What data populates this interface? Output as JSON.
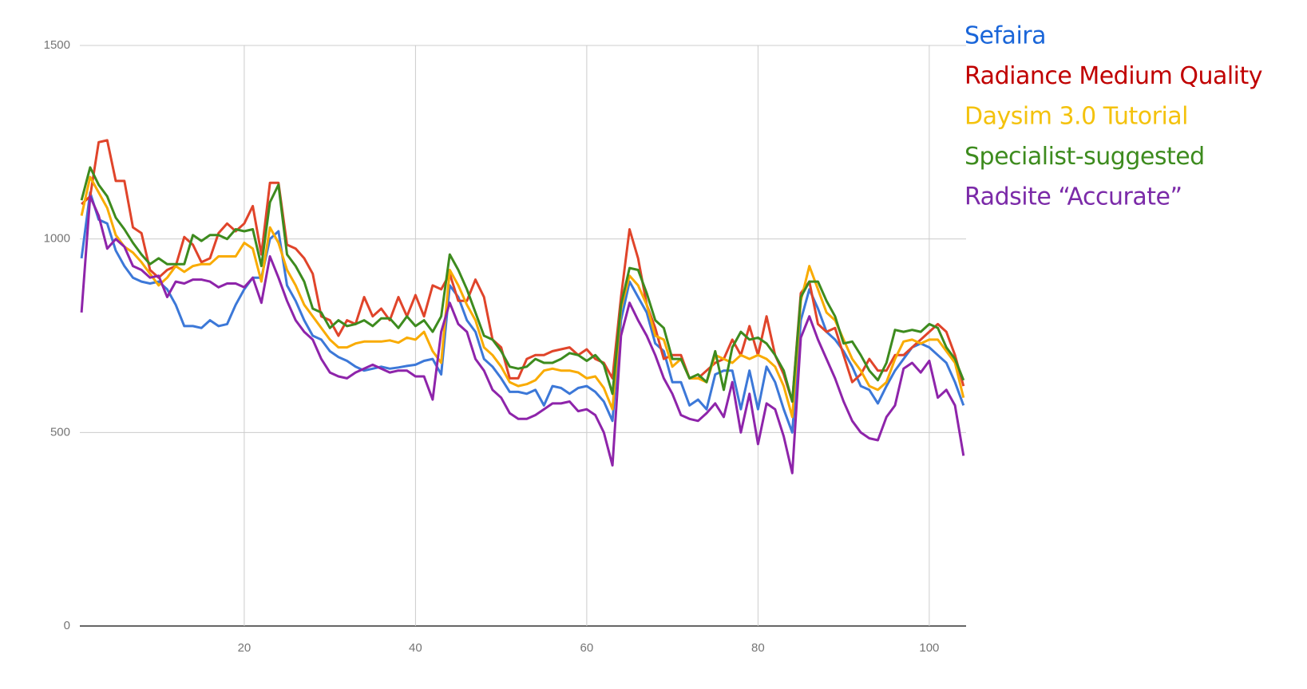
{
  "chart_data": {
    "type": "line",
    "x": [
      1,
      2,
      3,
      4,
      5,
      6,
      7,
      8,
      9,
      10,
      11,
      12,
      13,
      14,
      15,
      16,
      17,
      18,
      19,
      20,
      21,
      22,
      23,
      24,
      25,
      26,
      27,
      28,
      29,
      30,
      31,
      32,
      33,
      34,
      35,
      36,
      37,
      38,
      39,
      40,
      41,
      42,
      43,
      44,
      45,
      46,
      47,
      48,
      49,
      50,
      51,
      52,
      53,
      54,
      55,
      56,
      57,
      58,
      59,
      60,
      61,
      62,
      63,
      64,
      65,
      66,
      67,
      68,
      69,
      70,
      71,
      72,
      73,
      74,
      75,
      76,
      77,
      78,
      79,
      80,
      81,
      82,
      83,
      84,
      85,
      86,
      87,
      88,
      89,
      90,
      91,
      92,
      93,
      94,
      95,
      96,
      97,
      98,
      99,
      100,
      101,
      102,
      103,
      104
    ],
    "xlim": [
      0.8,
      104.3
    ],
    "xticks": [
      20,
      40,
      60,
      80,
      100
    ],
    "ylim": [
      0,
      1500
    ],
    "yticks": [
      0,
      500,
      1000,
      1500
    ],
    "grid": true,
    "legend": "right",
    "series": [
      {
        "name": "Sefaira",
        "color": "#3c78d8",
        "legend_color": "#1a66d9",
        "values": [
          950,
          1120,
          1050,
          1040,
          970,
          930,
          900,
          890,
          885,
          890,
          870,
          830,
          775,
          775,
          770,
          790,
          775,
          780,
          830,
          870,
          900,
          900,
          1000,
          1020,
          880,
          840,
          790,
          750,
          740,
          710,
          695,
          685,
          670,
          660,
          665,
          670,
          665,
          668,
          672,
          675,
          685,
          690,
          650,
          880,
          850,
          790,
          760,
          690,
          670,
          640,
          605,
          605,
          600,
          610,
          570,
          620,
          615,
          600,
          615,
          620,
          605,
          580,
          530,
          790,
          890,
          850,
          810,
          730,
          710,
          630,
          630,
          570,
          585,
          560,
          650,
          660,
          660,
          560,
          660,
          560,
          670,
          630,
          560,
          500,
          790,
          870,
          820,
          760,
          740,
          710,
          670,
          620,
          610,
          575,
          620,
          660,
          690,
          720,
          730,
          720,
          700,
          680,
          630,
          570
        ]
      },
      {
        "name": "Radiance Medium Quality",
        "color": "#e0442a",
        "legend_color": "#c00000",
        "values": [
          1090,
          1110,
          1250,
          1255,
          1150,
          1150,
          1030,
          1015,
          920,
          900,
          920,
          930,
          1005,
          985,
          940,
          950,
          1015,
          1040,
          1020,
          1040,
          1085,
          960,
          1145,
          1145,
          985,
          975,
          950,
          910,
          800,
          790,
          750,
          790,
          780,
          850,
          800,
          820,
          790,
          850,
          800,
          855,
          800,
          880,
          870,
          910,
          840,
          840,
          895,
          850,
          740,
          720,
          640,
          640,
          690,
          700,
          700,
          710,
          715,
          720,
          700,
          715,
          690,
          680,
          640,
          850,
          1025,
          950,
          830,
          770,
          690,
          700,
          700,
          640,
          640,
          660,
          680,
          690,
          740,
          700,
          775,
          700,
          800,
          700,
          650,
          580,
          860,
          890,
          780,
          760,
          770,
          700,
          630,
          650,
          690,
          660,
          660,
          700,
          700,
          720,
          740,
          760,
          780,
          760,
          700,
          620
        ]
      },
      {
        "name": "Daysim 3.0 Tutorial",
        "color": "#f9ab00",
        "legend_color": "#f4c20d",
        "values": [
          1060,
          1160,
          1120,
          1080,
          1010,
          980,
          965,
          940,
          910,
          880,
          900,
          930,
          915,
          930,
          935,
          935,
          955,
          955,
          955,
          990,
          975,
          890,
          1030,
          990,
          920,
          880,
          830,
          800,
          770,
          740,
          720,
          720,
          730,
          735,
          735,
          735,
          738,
          732,
          745,
          740,
          760,
          710,
          680,
          920,
          880,
          830,
          790,
          720,
          700,
          670,
          630,
          620,
          625,
          635,
          660,
          665,
          660,
          660,
          655,
          640,
          645,
          615,
          560,
          820,
          905,
          880,
          830,
          750,
          740,
          670,
          690,
          640,
          640,
          630,
          700,
          690,
          680,
          700,
          690,
          700,
          690,
          670,
          620,
          540,
          840,
          930,
          870,
          810,
          790,
          740,
          690,
          660,
          620,
          610,
          630,
          690,
          735,
          740,
          730,
          740,
          740,
          710,
          680,
          590
        ]
      },
      {
        "name": "Specialist-suggested",
        "color": "#3d8b1e",
        "legend_color": "#3d8b1e",
        "values": [
          1100,
          1185,
          1140,
          1110,
          1055,
          1025,
          990,
          960,
          935,
          950,
          935,
          935,
          935,
          1010,
          995,
          1010,
          1010,
          1000,
          1025,
          1020,
          1025,
          930,
          1095,
          1140,
          960,
          930,
          890,
          820,
          810,
          770,
          790,
          775,
          780,
          790,
          775,
          795,
          795,
          770,
          800,
          775,
          790,
          760,
          800,
          960,
          920,
          870,
          810,
          750,
          740,
          710,
          670,
          665,
          670,
          690,
          680,
          680,
          690,
          705,
          700,
          685,
          700,
          675,
          600,
          830,
          925,
          920,
          860,
          790,
          770,
          690,
          690,
          640,
          650,
          630,
          710,
          610,
          720,
          760,
          740,
          745,
          730,
          700,
          660,
          580,
          850,
          890,
          890,
          840,
          800,
          730,
          735,
          700,
          660,
          635,
          680,
          765,
          760,
          765,
          760,
          780,
          770,
          720,
          690,
          635
        ]
      },
      {
        "name": "Radsite “Accurate”",
        "color": "#8e24aa",
        "legend_color": "#7b2aa8",
        "values": [
          810,
          1110,
          1060,
          975,
          1000,
          980,
          930,
          920,
          900,
          905,
          850,
          890,
          885,
          895,
          895,
          890,
          875,
          885,
          885,
          875,
          900,
          835,
          955,
          900,
          840,
          790,
          760,
          740,
          690,
          655,
          645,
          640,
          655,
          665,
          675,
          665,
          655,
          660,
          660,
          645,
          645,
          585,
          760,
          835,
          780,
          760,
          690,
          660,
          610,
          590,
          550,
          535,
          535,
          545,
          560,
          575,
          575,
          580,
          555,
          560,
          545,
          500,
          415,
          750,
          835,
          790,
          750,
          700,
          640,
          600,
          545,
          535,
          530,
          550,
          575,
          540,
          630,
          500,
          600,
          470,
          575,
          560,
          490,
          395,
          745,
          800,
          740,
          690,
          640,
          580,
          530,
          500,
          485,
          480,
          540,
          570,
          665,
          680,
          655,
          685,
          590,
          610,
          570,
          440
        ]
      }
    ]
  }
}
